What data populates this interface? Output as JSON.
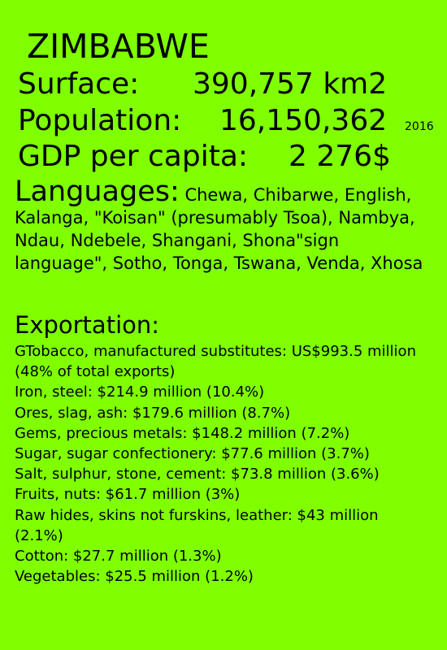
{
  "title": "ZIMBABWE",
  "surface": {
    "label": "Surface:",
    "value": "390,757 km2"
  },
  "population": {
    "label": "Population:",
    "value": "16,150,362",
    "year": "2016"
  },
  "gdp": {
    "label": "GDP per capita:",
    "value": "2 276$"
  },
  "languages": {
    "label": "Languages:",
    "text": "Chewa, Chibarwe, English, Kalanga, \"Koisan\" (presumably Tsoa), Nambya, Ndau, Ndebele, Shangani, Shona\"sign language\", Sotho, Tonga, Tswana, Venda, Xhosa"
  },
  "exportation": {
    "label": "Exportation:",
    "items": [
      "GTobacco, manufactured substitutes: US$993.5 million (48% of total exports)",
      "Iron, steel: $214.9 million (10.4%)",
      "Ores, slag, ash: $179.6 million (8.7%)",
      "Gems, precious metals: $148.2 million (7.2%)",
      "Sugar, sugar confectionery: $77.6 million (3.7%)",
      "Salt, sulphur, stone, cement: $73.8 million (3.6%)",
      "Fruits, nuts: $61.7 million (3%)",
      "Raw hides, skins not furskins, leather: $43 million (2.1%)",
      "Cotton: $27.7 million (1.3%)",
      "Vegetables: $25.5 million (1.2%)"
    ]
  }
}
